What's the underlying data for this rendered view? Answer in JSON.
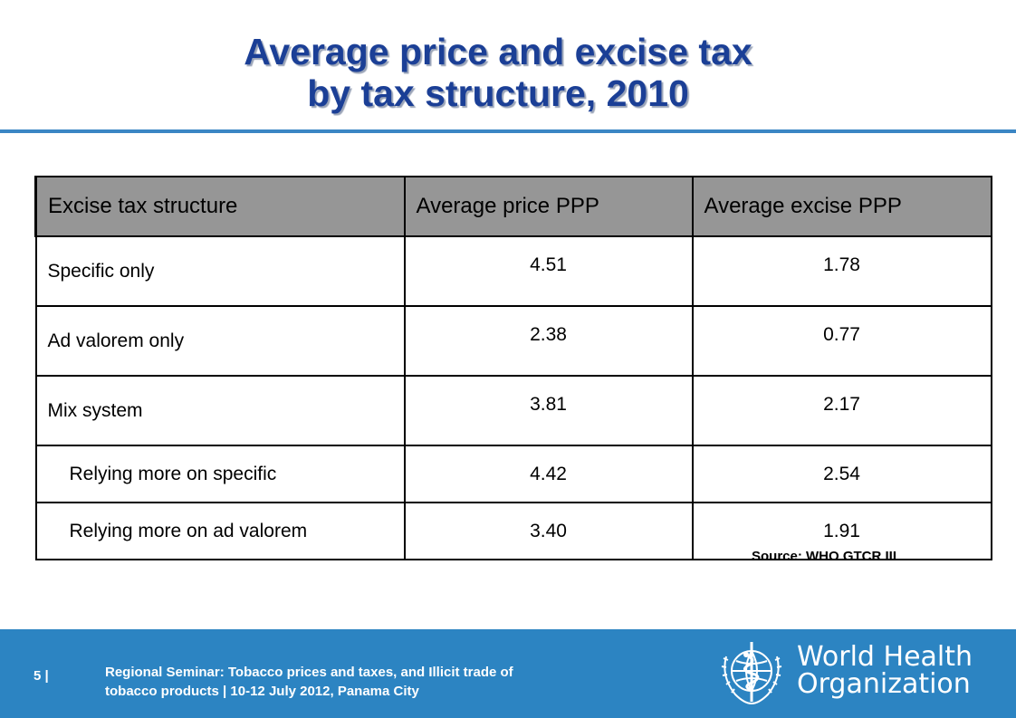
{
  "slide": {
    "title_line1": "Average price and excise tax",
    "title_line2": "by tax structure, 2010"
  },
  "table": {
    "headers": [
      "Excise tax structure",
      "Average price PPP",
      "Average excise PPP"
    ],
    "rows": [
      {
        "label": "Specific only",
        "price": "4.51",
        "excise": "1.78"
      },
      {
        "label": "Ad valorem only",
        "price": "2.38",
        "excise": "0.77"
      },
      {
        "label": "Mix system",
        "price": "3.81",
        "excise": "2.17"
      },
      {
        "label": "Relying more on specific",
        "price": "4.42",
        "excise": "2.54"
      },
      {
        "label": "Relying more on ad valorem",
        "price": "3.40",
        "excise": "1.91"
      }
    ]
  },
  "source": "Source: WHO GTCR III",
  "footer": {
    "page_number": "5 |",
    "seminar_line1": "Regional  Seminar: Tobacco prices and taxes, and Illicit trade of",
    "seminar_line2": "tobacco products",
    "separator": "|",
    "seminar_line2_rest": "10-12  July 2012, Panama City",
    "org_line1": "World Health",
    "org_line2": "Organization"
  },
  "colors": {
    "title": "#1b3f96",
    "accent_rule": "#3b86c4",
    "header_fill": "#969696",
    "footer_band": "#2c84c2"
  },
  "icons": {
    "logo": "who-emblem-icon"
  }
}
